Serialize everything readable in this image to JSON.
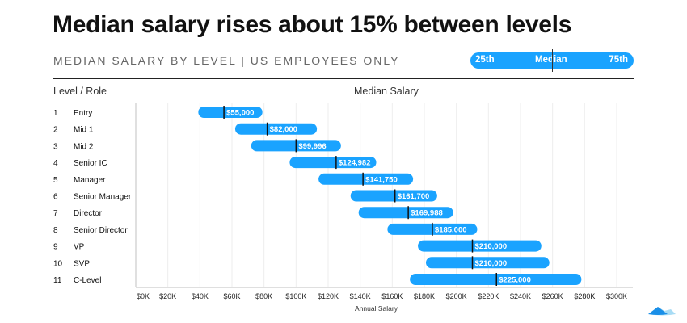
{
  "title": "Median salary rises about 15% between levels",
  "subtitle": "MEDIAN SALARY BY LEVEL | US EMPLOYEES ONLY",
  "legend": {
    "p25": "25th",
    "median": "Median",
    "p75": "75th"
  },
  "colors": {
    "bar": "#1aa3ff",
    "median_line": "#111111",
    "grid": "#eeeeee"
  },
  "chart_data": {
    "type": "range-bar",
    "column_headers": {
      "level": "Level / Role",
      "chart": "Median Salary"
    },
    "xlabel": "Annual Salary",
    "xlim": [
      0,
      300000
    ],
    "xticks": [
      "$0K",
      "$20K",
      "$40K",
      "$60K",
      "$80K",
      "$100K",
      "$120K",
      "$140K",
      "$160K",
      "$180K",
      "$200K",
      "$220K",
      "$240K",
      "$260K",
      "$280K",
      "$300K"
    ],
    "grid": true,
    "rows": [
      {
        "level": "1",
        "role": "Entry",
        "p25": 39000,
        "median": 55000,
        "p75": 79000,
        "label": "$55,000"
      },
      {
        "level": "2",
        "role": "Mid 1",
        "p25": 62000,
        "median": 82000,
        "p75": 113000,
        "label": "$82,000"
      },
      {
        "level": "3",
        "role": "Mid 2",
        "p25": 72000,
        "median": 99996,
        "p75": 128000,
        "label": "$99,996"
      },
      {
        "level": "4",
        "role": "Senior IC",
        "p25": 96000,
        "median": 124982,
        "p75": 150000,
        "label": "$124,982"
      },
      {
        "level": "5",
        "role": "Manager",
        "p25": 114000,
        "median": 141750,
        "p75": 173000,
        "label": "$141,750"
      },
      {
        "level": "6",
        "role": "Senior Manager",
        "p25": 134000,
        "median": 161700,
        "p75": 188000,
        "label": "$161,700"
      },
      {
        "level": "7",
        "role": "Director",
        "p25": 139000,
        "median": 169988,
        "p75": 198000,
        "label": "$169,988"
      },
      {
        "level": "8",
        "role": "Senior Director",
        "p25": 157000,
        "median": 185000,
        "p75": 213000,
        "label": "$185,000"
      },
      {
        "level": "9",
        "role": "VP",
        "p25": 176000,
        "median": 210000,
        "p75": 253000,
        "label": "$210,000"
      },
      {
        "level": "10",
        "role": "SVP",
        "p25": 181000,
        "median": 210000,
        "p75": 258000,
        "label": "$210,000"
      },
      {
        "level": "11",
        "role": "C-Level",
        "p25": 171000,
        "median": 225000,
        "p75": 278000,
        "label": "$225,000"
      }
    ]
  }
}
